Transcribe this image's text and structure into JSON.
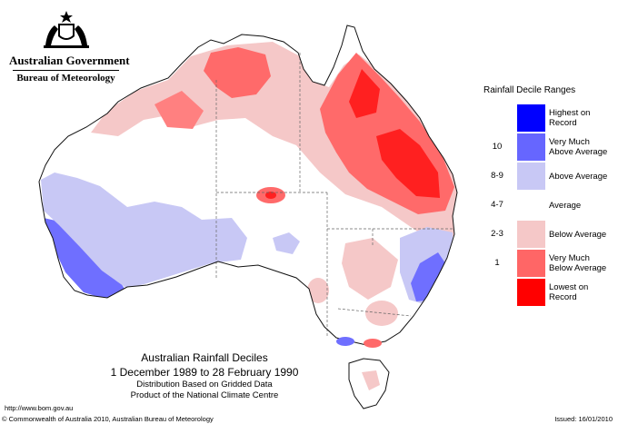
{
  "header": {
    "gov_title": "Australian Government",
    "bureau": "Bureau of Meteorology"
  },
  "legend": {
    "title": "Rainfall Decile Ranges",
    "items": [
      {
        "range": "",
        "label": "Highest on Record",
        "color": "#0000ff"
      },
      {
        "range": "10",
        "label": "Very Much Above Average",
        "color": "#6666ff"
      },
      {
        "range": "8-9",
        "label": "Above Average",
        "color": "#c8c8f5"
      },
      {
        "range": "4-7",
        "label": "Average",
        "color": "#ffffff"
      },
      {
        "range": "2-3",
        "label": "Below Average",
        "color": "#f5c8c8"
      },
      {
        "range": "1",
        "label": "Very Much Below Average",
        "color": "#ff6666"
      },
      {
        "range": "",
        "label": "Lowest on Record",
        "color": "#ff0000"
      }
    ]
  },
  "caption": {
    "title": "Australian Rainfall Deciles",
    "dates": "1 December 1989 to 28 February 1990",
    "line1": "Distribution Based on Gridded Data",
    "line2": "Product of the National Climate Centre"
  },
  "footer": {
    "url": "http://www.bom.gov.au",
    "copyright": "© Commonwealth of Australia 2010, Australian Bureau of Meteorology",
    "issued": "Issued: 16/01/2010"
  }
}
